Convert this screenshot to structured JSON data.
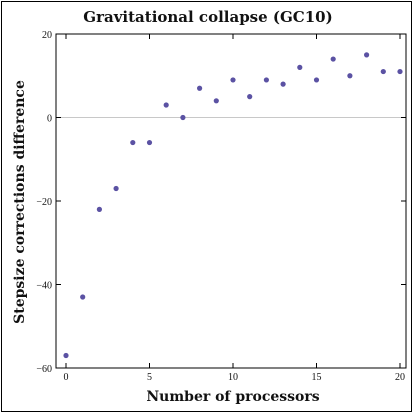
{
  "chart_data": {
    "type": "scatter",
    "title": "Gravitational collapse (GC10)",
    "xlabel": "Number of processors",
    "ylabel": "Stepsize corrections difference",
    "xlim": [
      0,
      20
    ],
    "ylim": [
      -60,
      20
    ],
    "x_ticks": [
      0,
      5,
      10,
      15,
      20
    ],
    "y_ticks": [
      20,
      0,
      -20,
      -40,
      -60
    ],
    "zero_line": true,
    "grid": false,
    "marker_color": "#5b52a3",
    "x": [
      0,
      1,
      2,
      3,
      4,
      5,
      6,
      7,
      8,
      9,
      10,
      11,
      12,
      13,
      14,
      15,
      16,
      17,
      18,
      19,
      20
    ],
    "values": [
      -57,
      -43,
      -22,
      -17,
      -6,
      -6,
      3,
      0,
      7,
      4,
      9,
      5,
      9,
      8,
      12,
      9,
      14,
      10,
      15,
      11,
      11
    ]
  }
}
